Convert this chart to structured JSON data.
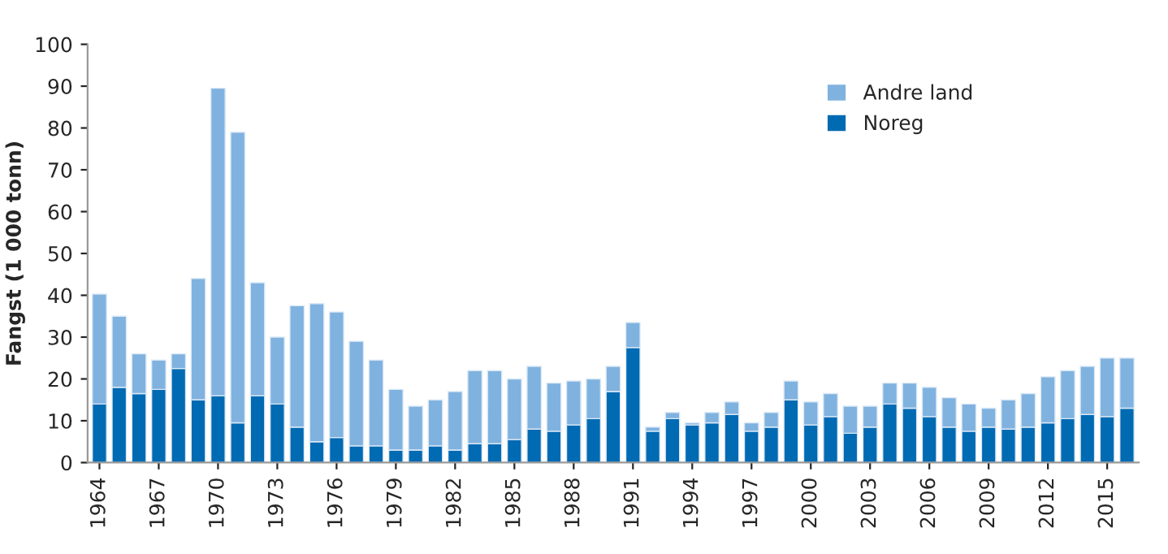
{
  "chart_data": {
    "type": "bar",
    "stacked": true,
    "ylabel": "Fangst (1 000 tonn)",
    "categories": [
      "1964",
      null,
      null,
      "1967",
      null,
      null,
      "1970",
      null,
      null,
      "1973",
      null,
      null,
      "1976",
      null,
      null,
      "1979",
      null,
      null,
      "1982",
      null,
      null,
      "1985",
      null,
      null,
      "1988",
      null,
      null,
      "1991",
      null,
      null,
      "1994",
      null,
      null,
      "1997",
      null,
      null,
      "2000",
      null,
      null,
      "2003",
      null,
      null,
      "2006",
      null,
      null,
      "2009",
      null,
      null,
      "2012",
      null,
      null,
      "2015",
      null
    ],
    "series": [
      {
        "name": "Noreg",
        "color": "#006ab3",
        "values": [
          14,
          18,
          16.5,
          17.5,
          22.5,
          15,
          16,
          9.5,
          16,
          14,
          8.5,
          5,
          6,
          4,
          4,
          3,
          3,
          4,
          3,
          4.5,
          4.5,
          5.5,
          8,
          7.5,
          9,
          10.5,
          17,
          27.5,
          7.5,
          10.5,
          9,
          9.5,
          11.5,
          7.5,
          8.5,
          15,
          9,
          11,
          7,
          8.5,
          14,
          13,
          11,
          8.5,
          7.5,
          8.5,
          8,
          8.5,
          9.5,
          10.5,
          11.5,
          11,
          13
        ]
      },
      {
        "name": "Andre land",
        "color": "#7fb2df",
        "values": [
          26.3,
          17,
          9.5,
          7,
          3.5,
          29,
          73.5,
          69.5,
          27,
          16,
          29,
          33,
          30,
          25,
          20.5,
          14.5,
          10.5,
          11,
          14,
          17.5,
          17.5,
          14.5,
          15,
          11.5,
          10.5,
          9.5,
          6,
          6,
          1,
          1.5,
          0.5,
          2.5,
          3,
          2,
          3.5,
          4.5,
          5.5,
          5.5,
          6.5,
          5,
          5,
          6,
          7,
          7,
          6.5,
          4.5,
          7,
          8,
          11,
          11.5,
          11.5,
          14,
          12
        ]
      }
    ],
    "ylim": [
      0,
      100
    ],
    "yticks": [
      0,
      10,
      20,
      30,
      40,
      50,
      60,
      70,
      80,
      90,
      100
    ],
    "legend": "top right",
    "grid": false
  }
}
